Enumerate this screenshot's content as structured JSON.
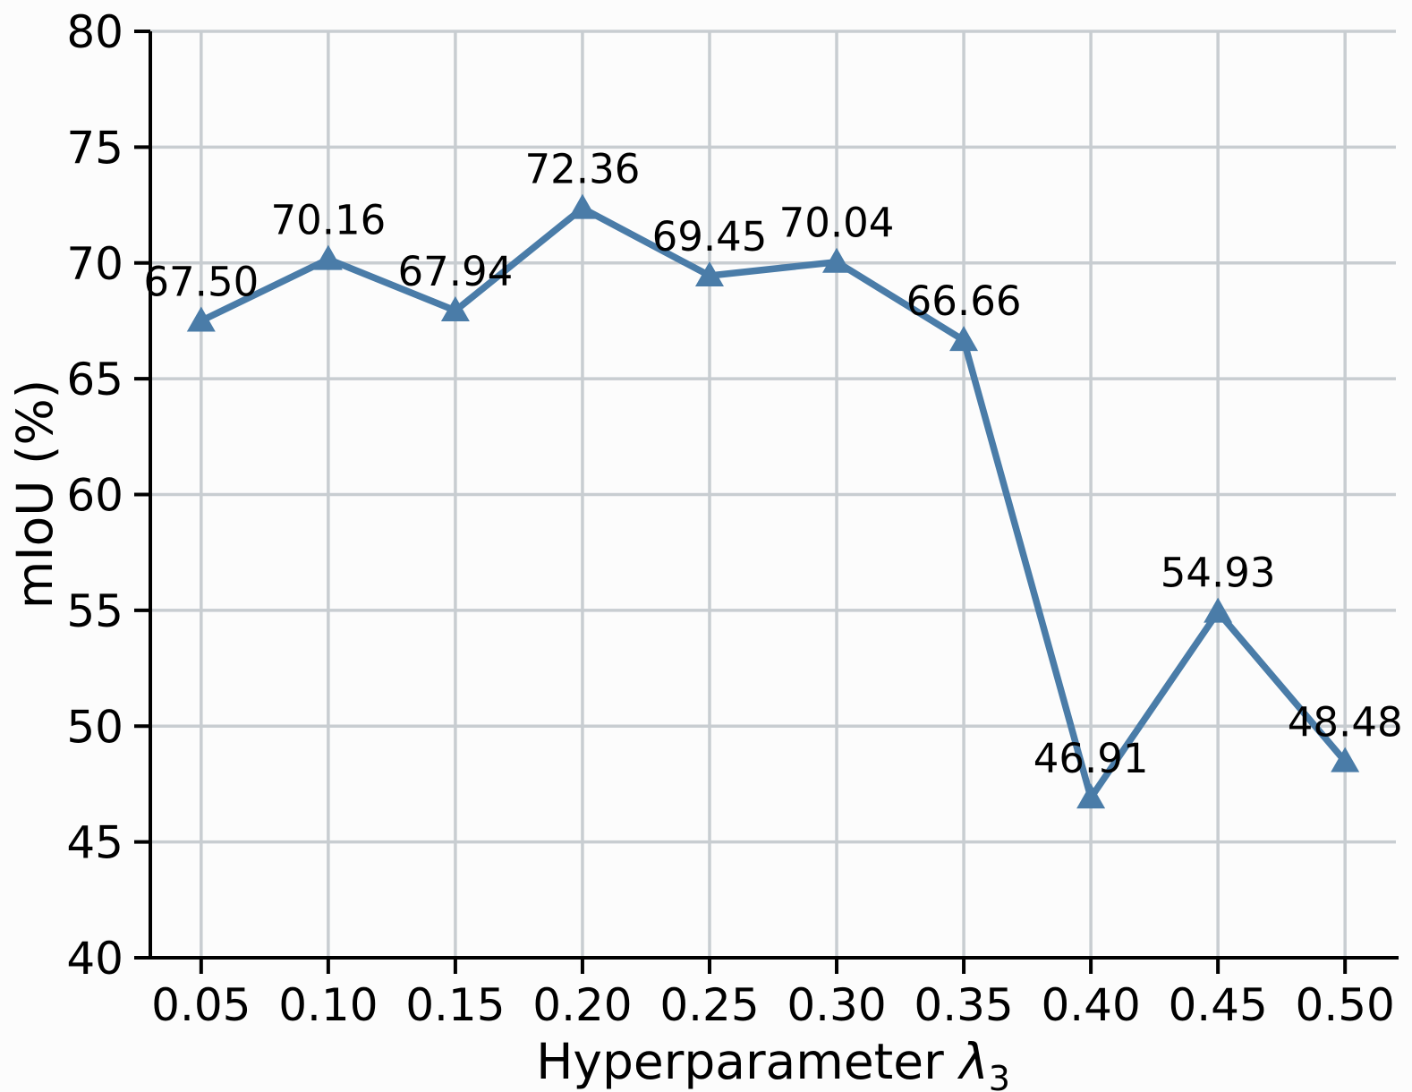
{
  "chart_data": {
    "type": "line",
    "title": "",
    "xlabel": "Hyperparameter λ3",
    "xlabel_parts": {
      "prefix": "Hyperparameter ",
      "symbol": "λ",
      "subscript": "3"
    },
    "ylabel": "mIoU (%)",
    "xlim": [
      0.03,
      0.52
    ],
    "ylim": [
      40,
      80
    ],
    "grid": true,
    "legend": false,
    "xticks": [
      0.05,
      0.1,
      0.15,
      0.2,
      0.25,
      0.3,
      0.35,
      0.4,
      0.45,
      0.5
    ],
    "xtick_labels": [
      "0.05",
      "0.10",
      "0.15",
      "0.20",
      "0.25",
      "0.30",
      "0.35",
      "0.40",
      "0.45",
      "0.50"
    ],
    "yticks": [
      40,
      45,
      50,
      55,
      60,
      65,
      70,
      75,
      80
    ],
    "ytick_labels": [
      "40",
      "45",
      "50",
      "55",
      "60",
      "65",
      "70",
      "75",
      "80"
    ],
    "series": [
      {
        "name": "mIoU",
        "marker": "triangle-up",
        "x": [
          0.05,
          0.1,
          0.15,
          0.2,
          0.25,
          0.3,
          0.35,
          0.4,
          0.45,
          0.5
        ],
        "y": [
          67.5,
          70.16,
          67.94,
          72.36,
          69.45,
          70.04,
          66.66,
          46.91,
          54.93,
          48.48
        ],
        "point_labels": [
          "67.50",
          "70.16",
          "67.94",
          "72.36",
          "69.45",
          "70.04",
          "66.66",
          "46.91",
          "54.93",
          "48.48"
        ]
      }
    ],
    "colors": {
      "line": "#4a7ca8",
      "marker": "#4a7ca8",
      "grid": "#c8cdd1",
      "axis": "#000000",
      "text": "#000000",
      "background": "#fcfcfc"
    }
  }
}
